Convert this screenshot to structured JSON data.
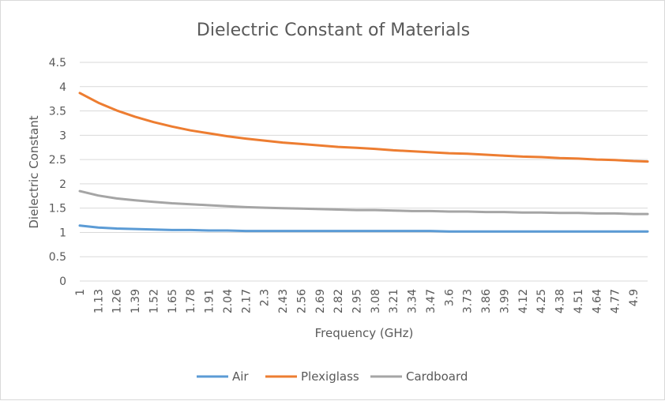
{
  "chart_data": {
    "type": "line",
    "title": "Dielectric Constant of Materials",
    "xlabel": "Frequency (GHz)",
    "ylabel": "Dielectric Constant",
    "ylim": [
      0,
      4.5
    ],
    "yticks": [
      "0",
      "0.5",
      "1",
      "1.5",
      "2",
      "2.5",
      "3",
      "3.5",
      "4",
      "4.5"
    ],
    "xticks": [
      "1",
      "1.13",
      "1.26",
      "1.39",
      "1.52",
      "1.65",
      "1.78",
      "1.91",
      "2.04",
      "2.17",
      "2.3",
      "2.43",
      "2.56",
      "2.69",
      "2.82",
      "2.95",
      "3.08",
      "3.21",
      "3.34",
      "3.47",
      "3.6",
      "3.73",
      "3.86",
      "3.99",
      "4.12",
      "4.25",
      "4.38",
      "4.51",
      "4.64",
      "4.77",
      "4.9"
    ],
    "x": [
      1,
      1.13,
      1.26,
      1.39,
      1.52,
      1.65,
      1.78,
      1.91,
      2.04,
      2.17,
      2.3,
      2.43,
      2.56,
      2.69,
      2.82,
      2.95,
      3.08,
      3.21,
      3.34,
      3.47,
      3.6,
      3.73,
      3.86,
      3.99,
      4.12,
      4.25,
      4.38,
      4.51,
      4.64,
      4.77,
      4.9,
      5.0
    ],
    "grid": true,
    "legend_position": "bottom",
    "series": [
      {
        "name": "Air",
        "color": "#5b9bd5",
        "values": [
          1.14,
          1.1,
          1.08,
          1.07,
          1.06,
          1.05,
          1.05,
          1.04,
          1.04,
          1.03,
          1.03,
          1.03,
          1.03,
          1.03,
          1.03,
          1.03,
          1.03,
          1.03,
          1.03,
          1.03,
          1.02,
          1.02,
          1.02,
          1.02,
          1.02,
          1.02,
          1.02,
          1.02,
          1.02,
          1.02,
          1.02,
          1.02
        ]
      },
      {
        "name": "Plexiglass",
        "color": "#ed7d31",
        "values": [
          3.87,
          3.67,
          3.51,
          3.38,
          3.27,
          3.18,
          3.1,
          3.04,
          2.98,
          2.93,
          2.89,
          2.85,
          2.82,
          2.79,
          2.76,
          2.74,
          2.72,
          2.69,
          2.67,
          2.65,
          2.63,
          2.62,
          2.6,
          2.58,
          2.56,
          2.55,
          2.53,
          2.52,
          2.5,
          2.49,
          2.47,
          2.46
        ]
      },
      {
        "name": "Cardboard",
        "color": "#a5a5a5",
        "values": [
          1.85,
          1.76,
          1.7,
          1.66,
          1.63,
          1.6,
          1.58,
          1.56,
          1.54,
          1.52,
          1.51,
          1.5,
          1.49,
          1.48,
          1.47,
          1.46,
          1.46,
          1.45,
          1.44,
          1.44,
          1.43,
          1.43,
          1.42,
          1.42,
          1.41,
          1.41,
          1.4,
          1.4,
          1.39,
          1.39,
          1.38,
          1.38
        ]
      }
    ]
  }
}
